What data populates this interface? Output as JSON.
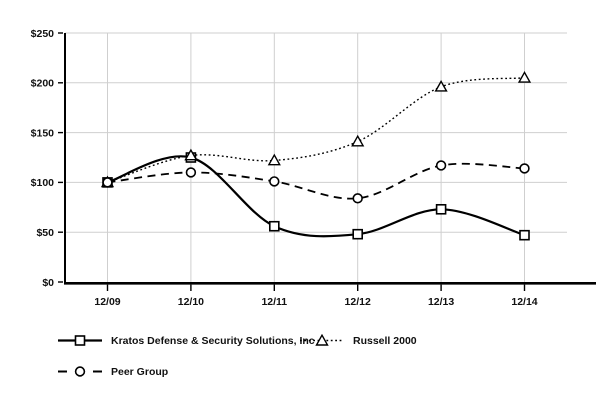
{
  "chart_data": {
    "type": "line",
    "title": "",
    "xlabel": "",
    "ylabel": "",
    "categories": [
      "12/09",
      "12/10",
      "12/11",
      "12/12",
      "12/13",
      "12/14"
    ],
    "series": [
      {
        "name": "Kratos Defense & Security Solutions, Inc",
        "marker": "square",
        "line_style": "solid",
        "values": [
          100,
          125,
          56,
          48,
          73,
          47
        ]
      },
      {
        "name": "Russell 2000",
        "marker": "triangle",
        "line_style": "dotted",
        "values": [
          100,
          127,
          122,
          141,
          196,
          205
        ]
      },
      {
        "name": "Peer Group",
        "marker": "circle",
        "line_style": "dashed",
        "values": [
          100,
          110,
          101,
          84,
          117,
          114
        ]
      }
    ],
    "y_ticks": [
      {
        "value": 0,
        "label": "$0"
      },
      {
        "value": 50,
        "label": "$50"
      },
      {
        "value": 100,
        "label": "$100"
      },
      {
        "value": 150,
        "label": "$150"
      },
      {
        "value": 200,
        "label": "$200"
      },
      {
        "value": 250,
        "label": "$250"
      }
    ],
    "ylim": [
      0,
      250
    ],
    "grid": true,
    "legend_position": "bottom-left",
    "colors": {
      "series_line": "#000000",
      "grid_line": "#cfcfcf",
      "axis": "#000000",
      "marker_fill": "#ffffff",
      "text": "#111111",
      "background": "#ffffff"
    }
  }
}
